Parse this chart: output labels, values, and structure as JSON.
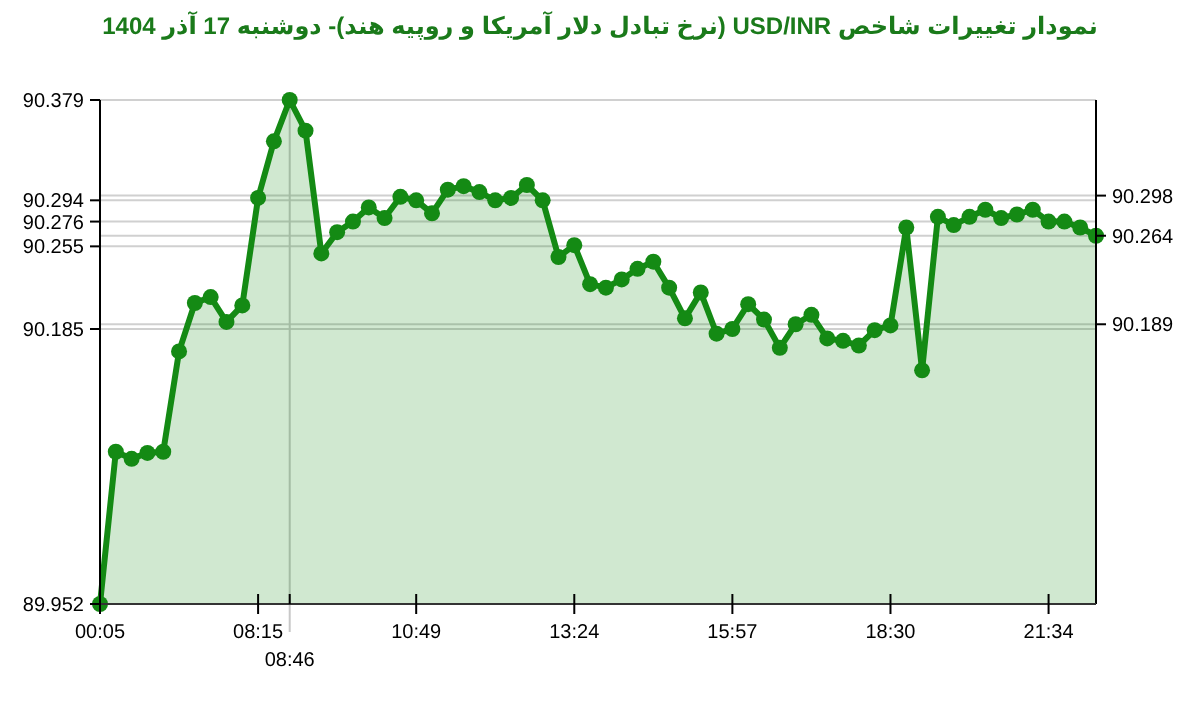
{
  "chart_data": {
    "type": "area",
    "title": "نمودار تغییرات شاخص USD/INR (نرخ تبادل دلار آمریکا و روپیه هند)- دوشنبه 17 آذر 1404",
    "categories": [
      "00:05",
      null,
      null,
      null,
      null,
      null,
      null,
      null,
      null,
      null,
      "08:15",
      null,
      "08:46",
      null,
      null,
      null,
      null,
      null,
      null,
      null,
      "10:49",
      null,
      null,
      null,
      null,
      null,
      null,
      null,
      null,
      null,
      "13:24",
      null,
      null,
      null,
      null,
      null,
      null,
      null,
      null,
      null,
      "15:57",
      null,
      null,
      null,
      null,
      null,
      null,
      null,
      null,
      null,
      "18:30",
      null,
      null,
      null,
      null,
      null,
      null,
      null,
      null,
      null,
      "21:34",
      null,
      null,
      null
    ],
    "series": [
      {
        "color": "#148a14",
        "values": [
          89.952,
          90.081,
          90.075,
          90.08,
          90.081,
          90.166,
          90.207,
          90.212,
          90.191,
          90.205,
          90.296,
          90.344,
          90.379,
          90.353,
          90.249,
          90.267,
          90.276,
          90.288,
          90.279,
          90.297,
          90.294,
          90.283,
          90.303,
          90.306,
          90.301,
          90.294,
          90.296,
          90.307,
          90.294,
          90.246,
          90.256,
          90.223,
          90.22,
          90.227,
          90.236,
          90.242,
          90.22,
          90.194,
          90.216,
          90.181,
          90.185,
          90.206,
          90.193,
          90.169,
          90.189,
          90.197,
          90.177,
          90.175,
          90.171,
          90.184,
          90.188,
          90.271,
          90.15,
          90.28,
          90.273,
          90.28,
          90.286,
          90.279,
          90.282,
          90.286,
          90.276,
          90.276,
          90.271,
          90.264
        ]
      }
    ],
    "ylim": [
      89.952,
      90.379
    ],
    "yticks": [
      89.952,
      90.185,
      90.255,
      90.276,
      90.294,
      90.379
    ],
    "y2lim": [
      89.952,
      90.379
    ],
    "y2ticks": [
      90.189,
      90.264,
      90.298
    ],
    "ref_lines": [
      {
        "axis": "x",
        "value": "08:46",
        "color": "#c8c8c8"
      }
    ],
    "grid": "y",
    "marker": "circle",
    "line_style": "solid"
  }
}
